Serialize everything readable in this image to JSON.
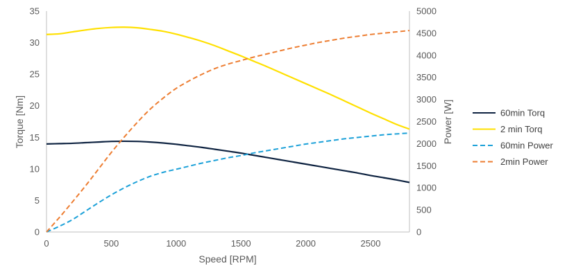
{
  "chart_data": {
    "type": "line",
    "x_label": "Speed [RPM]",
    "y_left_label": "Torque [Nm]",
    "y_right_label": "Power [W]",
    "x_range": [
      0,
      2800
    ],
    "x_ticks": [
      0,
      500,
      1000,
      1500,
      2000,
      2500
    ],
    "y_left_range": [
      0,
      35
    ],
    "y_left_ticks": [
      0,
      5,
      10,
      15,
      20,
      25,
      30,
      35
    ],
    "y_right_range": [
      0,
      5000
    ],
    "y_right_ticks": [
      0,
      500,
      1000,
      1500,
      2000,
      2500,
      3000,
      3500,
      4000,
      4500,
      5000
    ],
    "grid": false,
    "legend_position": "right",
    "series": [
      {
        "name": "60min Torq",
        "axis": "left",
        "color": "#0D2240",
        "dash": "solid",
        "x": [
          0,
          100,
          200,
          300,
          400,
          500,
          600,
          700,
          800,
          900,
          1000,
          1100,
          1200,
          1300,
          1400,
          1500,
          1600,
          1700,
          1800,
          1900,
          2000,
          2100,
          2200,
          2300,
          2400,
          2500,
          2600,
          2700,
          2800
        ],
        "y": [
          13.95,
          14.0,
          14.05,
          14.15,
          14.25,
          14.35,
          14.38,
          14.35,
          14.25,
          14.1,
          13.9,
          13.65,
          13.4,
          13.1,
          12.8,
          12.5,
          12.15,
          11.8,
          11.45,
          11.1,
          10.75,
          10.4,
          10.05,
          9.7,
          9.35,
          8.95,
          8.6,
          8.25,
          7.85
        ]
      },
      {
        "name": "2 min Torq",
        "axis": "left",
        "color": "#FFE000",
        "dash": "solid",
        "x": [
          0,
          100,
          200,
          300,
          400,
          500,
          600,
          700,
          800,
          900,
          1000,
          1100,
          1200,
          1300,
          1400,
          1500,
          1600,
          1700,
          1800,
          1900,
          2000,
          2100,
          2200,
          2300,
          2400,
          2500,
          2600,
          2700,
          2800
        ],
        "y": [
          31.3,
          31.4,
          31.7,
          32.0,
          32.25,
          32.4,
          32.45,
          32.35,
          32.1,
          31.8,
          31.35,
          30.8,
          30.2,
          29.5,
          28.7,
          27.9,
          27.05,
          26.2,
          25.3,
          24.4,
          23.5,
          22.6,
          21.7,
          20.75,
          19.8,
          18.85,
          17.95,
          17.05,
          16.3
        ]
      },
      {
        "name": "60min Power",
        "axis": "right",
        "color": "#1AA0D8",
        "dash": "dashed",
        "x": [
          0,
          100,
          200,
          300,
          400,
          500,
          600,
          700,
          800,
          900,
          1000,
          1100,
          1200,
          1300,
          1400,
          1500,
          1600,
          1700,
          1800,
          1900,
          2000,
          2100,
          2200,
          2300,
          2400,
          2500,
          2600,
          2700,
          2800
        ],
        "y": [
          0,
          130,
          280,
          470,
          660,
          840,
          1000,
          1140,
          1260,
          1350,
          1420,
          1490,
          1560,
          1620,
          1680,
          1730,
          1790,
          1840,
          1890,
          1940,
          1990,
          2030,
          2070,
          2110,
          2140,
          2170,
          2200,
          2220,
          2240
        ]
      },
      {
        "name": "2min Power",
        "axis": "right",
        "color": "#ED7D31",
        "dash": "dashed",
        "x": [
          0,
          100,
          200,
          300,
          400,
          500,
          600,
          700,
          800,
          900,
          1000,
          1100,
          1200,
          1300,
          1400,
          1500,
          1600,
          1700,
          1800,
          1900,
          2000,
          2100,
          2200,
          2300,
          2400,
          2500,
          2600,
          2700,
          2800
        ],
        "y": [
          0,
          330,
          680,
          1040,
          1420,
          1800,
          2150,
          2480,
          2780,
          3030,
          3250,
          3420,
          3570,
          3700,
          3800,
          3880,
          3960,
          4030,
          4100,
          4170,
          4230,
          4290,
          4340,
          4390,
          4430,
          4470,
          4500,
          4530,
          4560
        ]
      }
    ]
  }
}
